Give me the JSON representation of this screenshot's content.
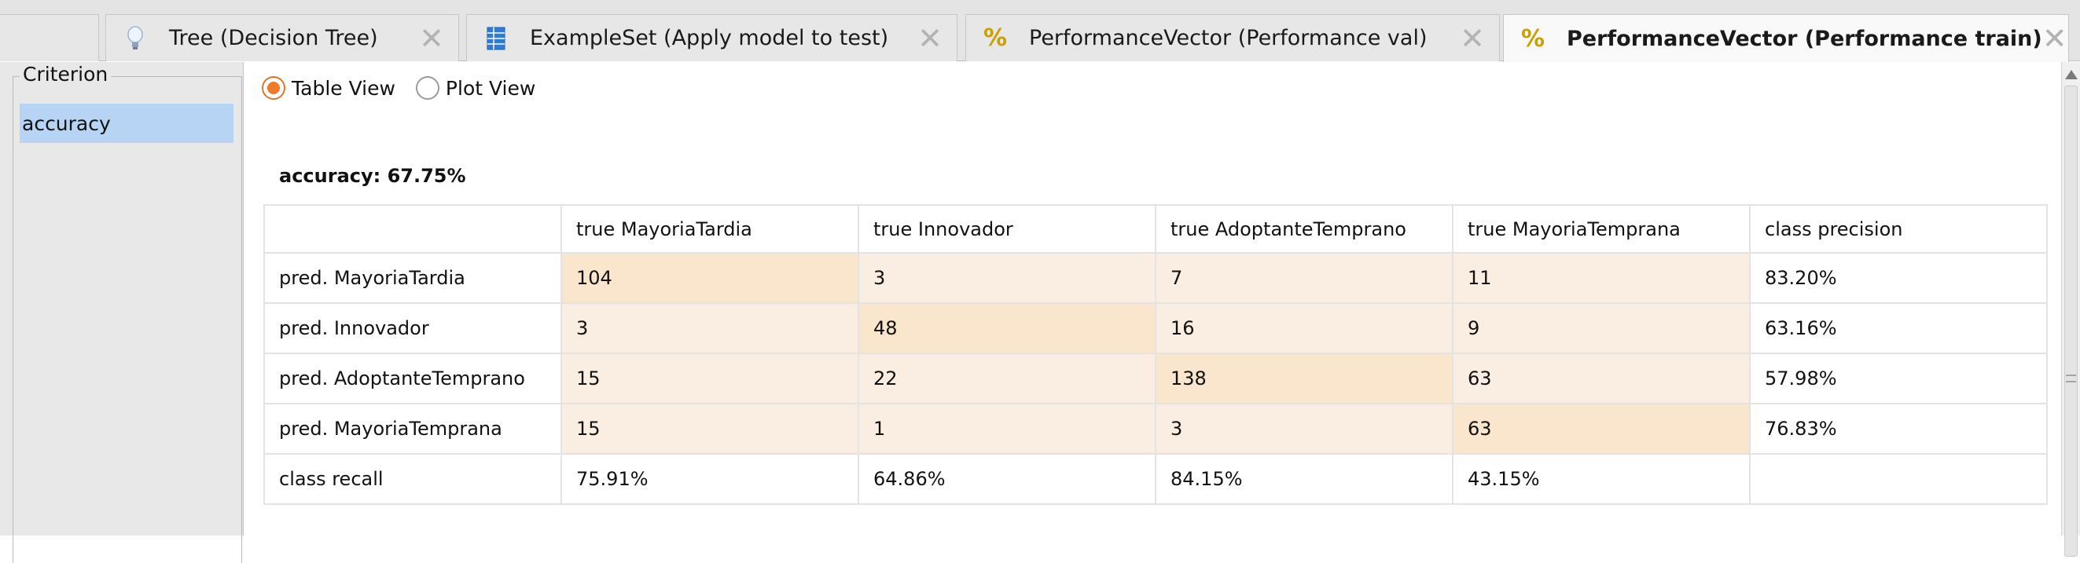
{
  "tabs": [
    {
      "label": "Tree (Decision Tree)",
      "icon": "lightbulb-icon"
    },
    {
      "label": "ExampleSet (Apply model to test)",
      "icon": "table-icon"
    },
    {
      "label": "PerformanceVector (Performance val)",
      "icon": "percent-icon"
    },
    {
      "label": "PerformanceVector (Performance train)",
      "icon": "percent-icon",
      "active": true
    }
  ],
  "close_glyph": "✕",
  "percent_glyph": "%",
  "sidebar": {
    "title": "Criterion",
    "items": [
      {
        "label": "accuracy",
        "selected": true
      }
    ]
  },
  "view_toggle": {
    "table_label": "Table View",
    "plot_label": "Plot View",
    "selected": "table"
  },
  "accuracy_label": "accuracy: 67.75%",
  "matrix": {
    "header": [
      "",
      "true MayoriaTardia",
      "true Innovador",
      "true AdoptanteTemprano",
      "true MayoriaTemprana",
      "class precision"
    ],
    "rows": [
      [
        "pred. MayoriaTardia",
        "104",
        "3",
        "7",
        "11",
        "83.20%"
      ],
      [
        "pred. Innovador",
        "3",
        "48",
        "16",
        "9",
        "63.16%"
      ],
      [
        "pred. AdoptanteTemprano",
        "15",
        "22",
        "138",
        "63",
        "57.98%"
      ],
      [
        "pred. MayoriaTemprana",
        "15",
        "1",
        "3",
        "63",
        "76.83%"
      ],
      [
        "class recall",
        "75.91%",
        "64.86%",
        "84.15%",
        "43.15%",
        ""
      ]
    ]
  },
  "colors": {
    "cell_light": "#f9eee1",
    "cell_diagonal": "#f9e6cd",
    "selection": "#b7d4f5",
    "radio_accent": "#ef7a2a"
  }
}
